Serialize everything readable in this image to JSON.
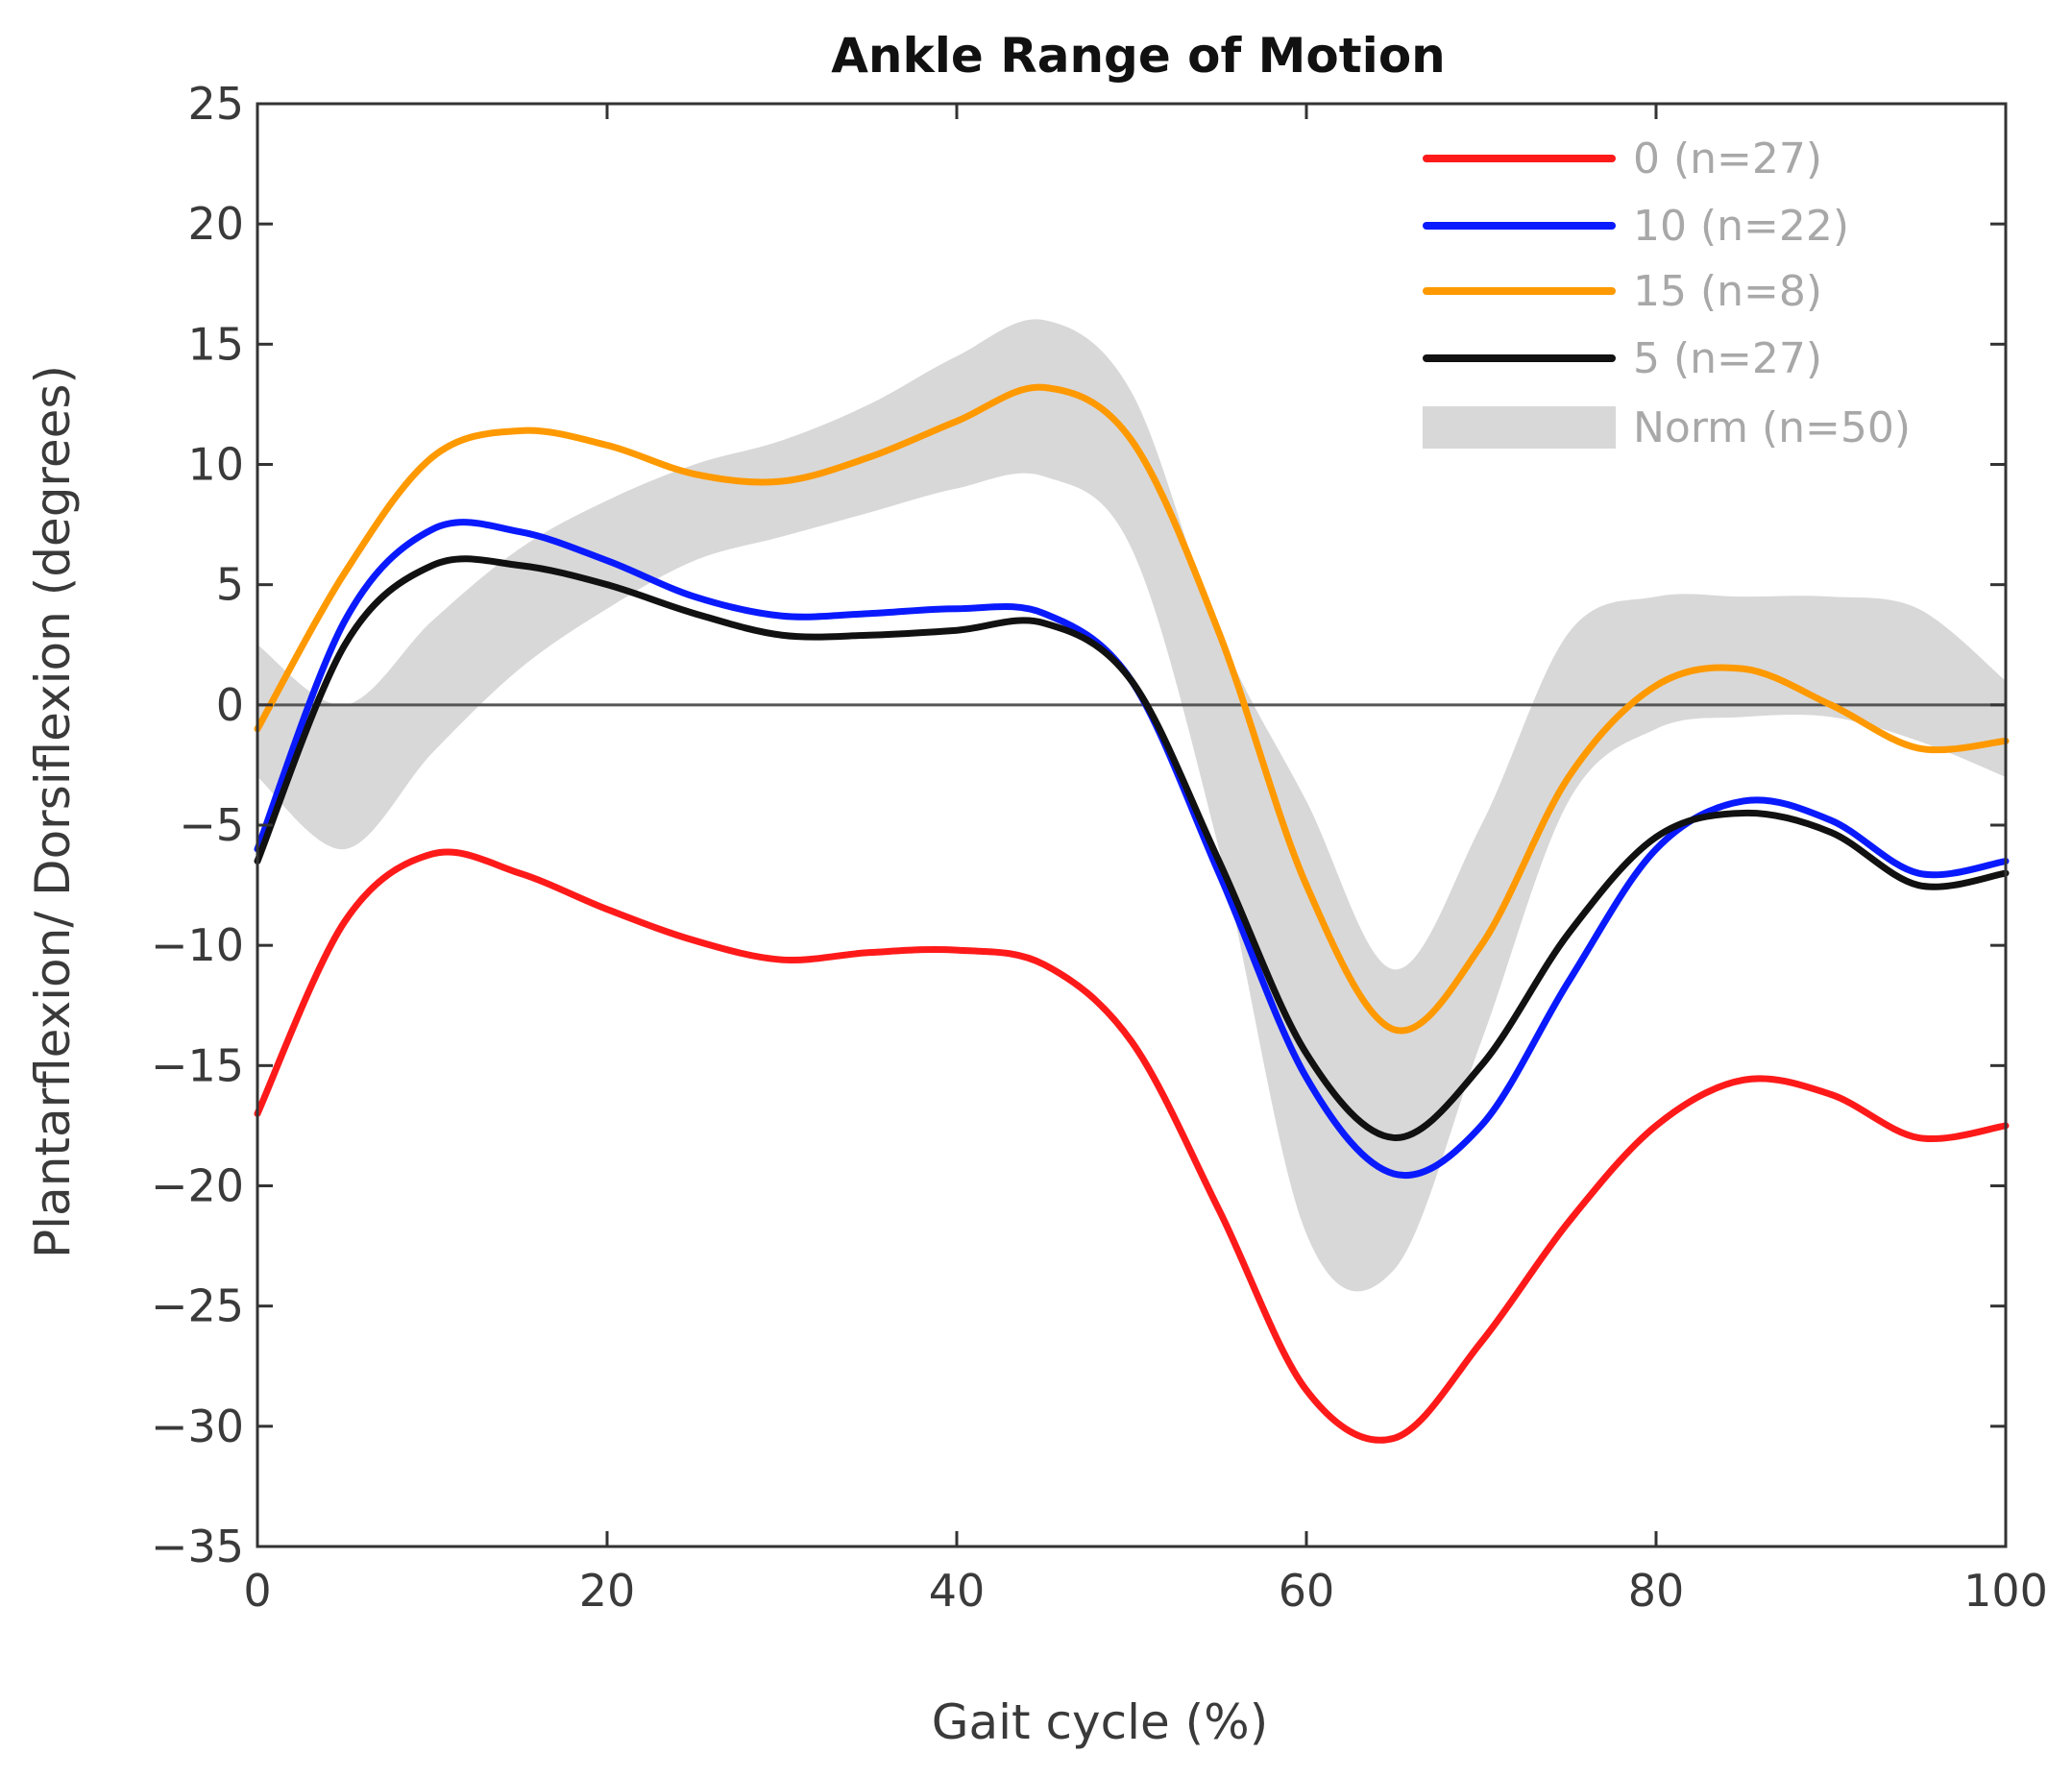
{
  "chart_data": {
    "type": "line",
    "title": "Ankle Range of Motion",
    "xlabel": "Gait cycle (%)",
    "ylabel": "Plantarflexion/ Dorsiflexion (degrees)",
    "xlim": [
      0,
      100
    ],
    "ylim": [
      -35,
      25
    ],
    "xticks": [
      0,
      20,
      40,
      60,
      80,
      100
    ],
    "xtick_labels": [
      "0",
      "20",
      "40",
      "60",
      "80",
      "100"
    ],
    "yticks": [
      25,
      20,
      15,
      10,
      5,
      0,
      -5,
      -10,
      -15,
      -20,
      -25,
      -30,
      -35
    ],
    "ytick_labels": [
      "25",
      "20",
      "15",
      "10",
      "5",
      "0",
      "−5",
      "−10",
      "−15",
      "−20",
      "−25",
      "−30",
      "−35"
    ],
    "zero_line": 0,
    "legend_position": "top-right",
    "x": [
      0,
      5,
      10,
      15,
      20,
      25,
      30,
      35,
      40,
      45,
      50,
      55,
      60,
      65,
      70,
      75,
      80,
      85,
      90,
      95,
      100
    ],
    "series": [
      {
        "name": "0 (n=27)",
        "color": "#ff1a1a",
        "values": [
          -17,
          -9,
          -6.2,
          -7,
          -8.5,
          -9.8,
          -10.6,
          -10.3,
          -10.2,
          -10.8,
          -14,
          -21,
          -28.5,
          -30.5,
          -26.5,
          -21.5,
          -17.5,
          -15.6,
          -16.2,
          -18,
          -17.5
        ]
      },
      {
        "name": "10 (n=22)",
        "color": "#0a1aff",
        "values": [
          -6,
          3.5,
          7.3,
          7.2,
          6,
          4.5,
          3.7,
          3.8,
          4,
          3.8,
          1,
          -7,
          -15.5,
          -19.5,
          -17.5,
          -11.5,
          -6,
          -4,
          -4.8,
          -7,
          -6.5
        ]
      },
      {
        "name": "15 (n=8)",
        "color": "#ff9900",
        "values": [
          -1,
          5.5,
          10.3,
          11.4,
          10.8,
          9.6,
          9.3,
          10.3,
          11.8,
          13.2,
          11,
          3,
          -7.5,
          -13.5,
          -10,
          -3,
          0.8,
          1.5,
          0,
          -1.8,
          -1.5
        ]
      },
      {
        "name": "5 (n=27)",
        "color": "#111111",
        "values": [
          -6.5,
          2.5,
          5.8,
          5.8,
          5,
          3.8,
          2.9,
          2.9,
          3.1,
          3.4,
          1,
          -6.5,
          -14.5,
          -18,
          -15,
          -9.5,
          -5.5,
          -4.5,
          -5.3,
          -7.5,
          -7
        ]
      }
    ],
    "norm_band": {
      "name": "Norm (n=50)",
      "color": "#d8d8d8",
      "upper": [
        2.5,
        0,
        3.5,
        6.5,
        8.5,
        10,
        11,
        12.5,
        14.5,
        16,
        13,
        3,
        -4,
        -11,
        -5,
        3,
        4.5,
        4.5,
        4.5,
        4,
        1
      ],
      "lower": [
        -3,
        -6,
        -2,
        1.5,
        4,
        6,
        7,
        8,
        9,
        9.5,
        6.5,
        -6,
        -22,
        -23.5,
        -14,
        -4,
        -1,
        -0.5,
        -0.5,
        -1.5,
        -3
      ]
    }
  }
}
